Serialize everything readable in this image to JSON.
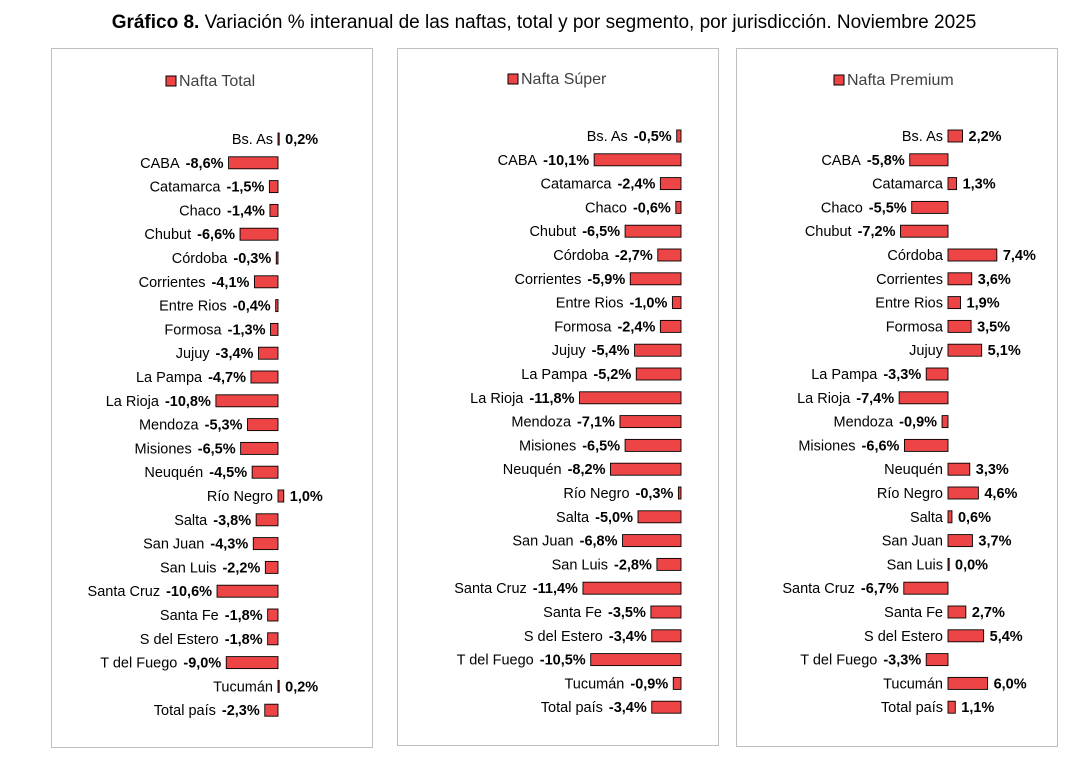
{
  "title": {
    "lead": "Gráfico 8.",
    "rest": " Variación % interanual de las naftas, total y por segmento, por jurisdicción. Noviembre 2025"
  },
  "colors": {
    "bar_fill": "#ed4545",
    "bar_stroke": "#000000",
    "panel_border": "#bfbfbf"
  },
  "chart_data": [
    {
      "type": "bar",
      "orientation": "horizontal",
      "legend": "Nafta Total",
      "categories": [
        "Bs. As",
        "CABA",
        "Catamarca",
        "Chaco",
        "Chubut",
        "Córdoba",
        "Corrientes",
        "Entre Rios",
        "Formosa",
        "Jujuy",
        "La Pampa",
        "La Rioja",
        "Mendoza",
        "Misiones",
        "Neuquén",
        "Río Negro",
        "Salta",
        "San Juan",
        "San Luis",
        "Santa Cruz",
        "Santa Fe",
        "S del Estero",
        "T del Fuego",
        "Tucumán",
        "Total país"
      ],
      "values": [
        0.2,
        -8.6,
        -1.5,
        -1.4,
        -6.6,
        -0.3,
        -4.1,
        -0.4,
        -1.3,
        -3.4,
        -4.7,
        -10.8,
        -5.3,
        -6.5,
        -4.5,
        1.0,
        -3.8,
        -4.3,
        -2.2,
        -10.6,
        -1.8,
        -1.8,
        -9.0,
        0.2,
        -2.3
      ],
      "labels": [
        "0,2%",
        "-8,6%",
        "-1,5%",
        "-1,4%",
        "-6,6%",
        "-0,3%",
        "-4,1%",
        "-0,4%",
        "-1,3%",
        "-3,4%",
        "-4,7%",
        "-10,8%",
        "-5,3%",
        "-6,5%",
        "-4,5%",
        "1,0%",
        "-3,8%",
        "-4,3%",
        "-2,2%",
        "-10,6%",
        "-1,8%",
        "-1,8%",
        "-9,0%",
        "0,2%",
        "-2,3%"
      ],
      "unit": "%"
    },
    {
      "type": "bar",
      "orientation": "horizontal",
      "legend": "Nafta Súper",
      "categories": [
        "Bs. As",
        "CABA",
        "Catamarca",
        "Chaco",
        "Chubut",
        "Córdoba",
        "Corrientes",
        "Entre Rios",
        "Formosa",
        "Jujuy",
        "La Pampa",
        "La Rioja",
        "Mendoza",
        "Misiones",
        "Neuquén",
        "Río Negro",
        "Salta",
        "San Juan",
        "San Luis",
        "Santa Cruz",
        "Santa Fe",
        "S del Estero",
        "T del Fuego",
        "Tucumán",
        "Total país"
      ],
      "values": [
        -0.5,
        -10.1,
        -2.4,
        -0.6,
        -6.5,
        -2.7,
        -5.9,
        -1.0,
        -2.4,
        -5.4,
        -5.2,
        -11.8,
        -7.1,
        -6.5,
        -8.2,
        -0.3,
        -5.0,
        -6.8,
        -2.8,
        -11.4,
        -3.5,
        -3.4,
        -10.5,
        -0.9,
        -3.4
      ],
      "labels": [
        "-0,5%",
        "-10,1%",
        "-2,4%",
        "-0,6%",
        "-6,5%",
        "-2,7%",
        "-5,9%",
        "-1,0%",
        "-2,4%",
        "-5,4%",
        "-5,2%",
        "-11,8%",
        "-7,1%",
        "-6,5%",
        "-8,2%",
        "-0,3%",
        "-5,0%",
        "-6,8%",
        "-2,8%",
        "-11,4%",
        "-3,5%",
        "-3,4%",
        "-10,5%",
        "-0,9%",
        "-3,4%"
      ],
      "unit": "%"
    },
    {
      "type": "bar",
      "orientation": "horizontal",
      "legend": "Nafta Premium",
      "categories": [
        "Bs. As",
        "CABA",
        "Catamarca",
        "Chaco",
        "Chubut",
        "Córdoba",
        "Corrientes",
        "Entre Rios",
        "Formosa",
        "Jujuy",
        "La Pampa",
        "La Rioja",
        "Mendoza",
        "Misiones",
        "Neuquén",
        "Río Negro",
        "Salta",
        "San Juan",
        "San Luis",
        "Santa Cruz",
        "Santa Fe",
        "S del Estero",
        "T del Fuego",
        "Tucumán",
        "Total país"
      ],
      "values": [
        2.2,
        -5.8,
        1.3,
        -5.5,
        -7.2,
        7.4,
        3.6,
        1.9,
        3.5,
        5.1,
        -3.3,
        -7.4,
        -0.9,
        -6.6,
        3.3,
        4.6,
        0.6,
        3.7,
        0.0,
        -6.7,
        2.7,
        5.4,
        -3.3,
        6.0,
        1.1
      ],
      "labels": [
        "2,2%",
        "-5,8%",
        "1,3%",
        "-5,5%",
        "-7,2%",
        "7,4%",
        "3,6%",
        "1,9%",
        "3,5%",
        "5,1%",
        "-3,3%",
        "-7,4%",
        "-0,9%",
        "-6,6%",
        "3,3%",
        "4,6%",
        "0,6%",
        "3,7%",
        "0,0%",
        "-6,7%",
        "2,7%",
        "5,4%",
        "-3,3%",
        "6,0%",
        "1,1%"
      ],
      "unit": "%"
    }
  ]
}
